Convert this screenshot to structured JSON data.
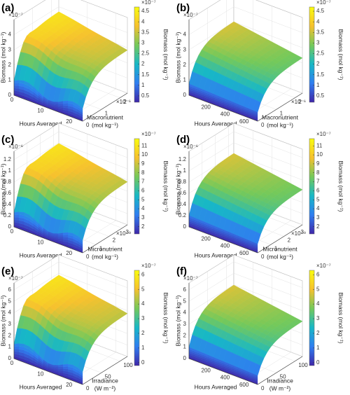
{
  "chart_data": [
    {
      "type": "surface",
      "label": "(a)",
      "xlabel": "Hours Averaged",
      "ylabel": [
        "Macronutrient",
        "(mol kg⁻¹)"
      ],
      "zlabel": "Biomass (mol kg⁻¹)",
      "clabel": "Biomass (mol kg⁻¹)",
      "xlim": [
        0,
        24
      ],
      "xticks": [
        0,
        10,
        20
      ],
      "ylim": [
        0,
        2.4
      ],
      "yticks": [
        0,
        1,
        2
      ],
      "y_exponent": "×10⁻⁶",
      "zlim": [
        0,
        5
      ],
      "zticks": [
        0,
        1,
        2,
        3,
        4
      ],
      "z_exponent": "×10⁻⁷",
      "clim": [
        0.2,
        4.7
      ],
      "cticks": [
        0.5,
        1,
        1.5,
        2,
        2.5,
        3,
        3.5,
        4,
        4.5
      ],
      "c_exponent": "×10⁻⁷",
      "colormap": [
        "#3e26a8",
        "#2f7ef0",
        "#17b8c6",
        "#75c95a",
        "#f6c12e",
        "#f9fb0e"
      ]
    },
    {
      "type": "surface",
      "label": "(b)",
      "xlabel": "Hours Averaged",
      "ylabel": [
        "Macronutrient",
        "(mol kg⁻¹)"
      ],
      "zlabel": "Biomass (mol kg⁻¹)",
      "clabel": "Biomass (mol kg⁻¹)",
      "xlim": [
        0,
        720
      ],
      "xticks": [
        200,
        400,
        600
      ],
      "ylim": [
        0,
        2.4
      ],
      "yticks": [
        0,
        1,
        2
      ],
      "y_exponent": "×10⁻⁶",
      "zlim": [
        0,
        5
      ],
      "zticks": [
        0,
        1,
        2,
        3,
        4
      ],
      "z_exponent": "×10⁻⁷",
      "clim": [
        0.2,
        4.7
      ],
      "cticks": [
        0.5,
        1,
        1.5,
        2,
        2.5,
        3,
        3.5,
        4,
        4.5
      ],
      "c_exponent": "×10⁻⁷",
      "colormap": [
        "#3e26a8",
        "#2f7ef0",
        "#17b8c6",
        "#75c95a",
        "#f6c12e",
        "#f9fb0e"
      ]
    },
    {
      "type": "surface",
      "label": "(c)",
      "xlabel": "Hours Averaged",
      "ylabel": [
        "Micronutrient",
        "(mol kg⁻¹)"
      ],
      "zlabel": "Biomass (mol kg⁻¹)",
      "clabel": "Biomass (mol kg⁻¹)",
      "xlim": [
        0,
        24
      ],
      "xticks": [
        0,
        10,
        20
      ],
      "ylim": [
        0,
        3.4
      ],
      "yticks": [
        0,
        1,
        2,
        3
      ],
      "y_exponent": "×10⁻⁹",
      "zlim": [
        0,
        1.35
      ],
      "zticks": [
        0,
        0.2,
        0.4,
        0.6,
        0.8,
        1,
        1.2
      ],
      "z_exponent": "×10⁻⁶",
      "clim": [
        1.2,
        11.8
      ],
      "cticks": [
        2,
        3,
        4,
        5,
        6,
        7,
        8,
        9,
        10,
        11
      ],
      "c_exponent": "×10⁻⁷",
      "colormap": [
        "#3e26a8",
        "#2f7ef0",
        "#17b8c6",
        "#75c95a",
        "#f6c12e",
        "#f9fb0e"
      ]
    },
    {
      "type": "surface",
      "label": "(d)",
      "xlabel": "Hours Averaged",
      "ylabel": [
        "Micronutrient",
        "(mol kg⁻¹)"
      ],
      "zlabel": "Biomass (mol kg⁻¹)",
      "clabel": "Biomass (mol kg⁻¹)",
      "xlim": [
        0,
        720
      ],
      "xticks": [
        200,
        400,
        600
      ],
      "ylim": [
        0,
        3.4
      ],
      "yticks": [
        0,
        1,
        2,
        3
      ],
      "y_exponent": "×10⁻⁹",
      "zlim": [
        0,
        1.35
      ],
      "zticks": [
        0,
        0.2,
        0.4,
        0.6,
        0.8,
        1,
        1.2
      ],
      "z_exponent": "×10⁻⁶",
      "clim": [
        1.2,
        11.8
      ],
      "cticks": [
        2,
        3,
        4,
        5,
        6,
        7,
        8,
        9,
        10,
        11
      ],
      "c_exponent": "×10⁻⁷",
      "colormap": [
        "#3e26a8",
        "#2f7ef0",
        "#17b8c6",
        "#75c95a",
        "#f6c12e",
        "#f9fb0e"
      ]
    },
    {
      "type": "surface",
      "label": "(e)",
      "xlabel": "Hours Averaged",
      "ylabel": [
        "Irradiance",
        "(W m⁻²)"
      ],
      "zlabel": "Biomass (mol kg⁻¹)",
      "clabel": "Biomass (mol kg⁻¹)",
      "xlim": [
        0,
        24
      ],
      "xticks": [
        0,
        10,
        20
      ],
      "ylim": [
        0,
        120
      ],
      "yticks": [
        0,
        50,
        100
      ],
      "zlim": [
        0,
        6.6
      ],
      "zticks": [
        0,
        1,
        2,
        3,
        4,
        5,
        6
      ],
      "z_exponent": "×10⁻⁷",
      "clim": [
        -0.2,
        6.3
      ],
      "cticks": [
        0,
        1,
        2,
        3,
        4,
        5,
        6
      ],
      "c_exponent": "×10⁻⁷",
      "colormap": [
        "#3e26a8",
        "#2f7ef0",
        "#17b8c6",
        "#75c95a",
        "#f6c12e",
        "#f9fb0e"
      ]
    },
    {
      "type": "surface",
      "label": "(f)",
      "xlabel": "Hours Averaged",
      "ylabel": [
        "Irradiance",
        "(W m⁻²)"
      ],
      "zlabel": "Biomass (mol kg⁻¹)",
      "clabel": "Biomass (mol kg⁻¹)",
      "xlim": [
        0,
        720
      ],
      "xticks": [
        200,
        400,
        600
      ],
      "ylim": [
        0,
        120
      ],
      "yticks": [
        0,
        50,
        100
      ],
      "zlim": [
        0,
        6.6
      ],
      "zticks": [
        0,
        1,
        2,
        3,
        4,
        5,
        6
      ],
      "z_exponent": "×10⁻⁷",
      "clim": [
        -0.2,
        6.3
      ],
      "cticks": [
        0,
        1,
        2,
        3,
        4,
        5,
        6
      ],
      "c_exponent": "×10⁻⁷",
      "colormap": [
        "#3e26a8",
        "#2f7ef0",
        "#17b8c6",
        "#75c95a",
        "#f6c12e",
        "#f9fb0e"
      ]
    }
  ]
}
